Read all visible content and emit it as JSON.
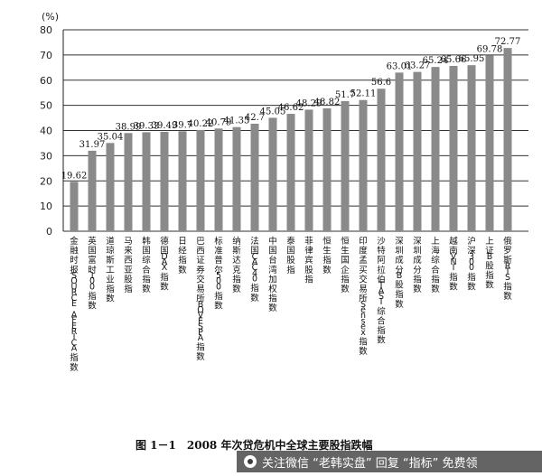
{
  "chart_data": {
    "type": "bar",
    "ylabel": "(%)",
    "ylim": [
      0,
      80
    ],
    "yticks": [
      0,
      10,
      20,
      30,
      40,
      50,
      60,
      70,
      80
    ],
    "grid": true,
    "categories": [
      "金融时报SOURCE AFERICA指数",
      "英国富时100指数",
      "道琼斯工业指数",
      "马来西亚股指",
      "韩国综合指数",
      "德国DAX指数",
      "日经指数",
      "巴西证券交易所BOVESPA指数",
      "标准普尔500指数",
      "纳斯达克指数",
      "法国CAC40指数",
      "中国台湾加权指数",
      "泰国股指",
      "菲律宾股指",
      "恒生指数",
      "恒生国企指数",
      "印度孟买交易所Sensex指数",
      "沙特阿拉伯TASI综合指数",
      "深圳成分B股指数",
      "深圳成分指数",
      "上海综合指数",
      "越南VNI指数",
      "沪深300指数",
      "上证B股指数",
      "俄罗斯RTS指数"
    ],
    "values": [
      19.62,
      31.97,
      35.04,
      38.99,
      39.33,
      39.49,
      39.7,
      40.22,
      40.79,
      41.35,
      42.7,
      45.05,
      46.62,
      48.29,
      48.82,
      51.7,
      52.11,
      56.6,
      63.01,
      63.27,
      65.24,
      65.66,
      65.95,
      69.78,
      72.77
    ],
    "data_labels": [
      "19.62",
      "31.97",
      "35.04",
      "38.99",
      "39.33",
      "39.49",
      "39.7",
      "40.22",
      "40.79",
      "41.35",
      "42.7",
      "45.05",
      "46.62",
      "48.29",
      "48.82",
      "51.7",
      "52.11",
      "56.6",
      "63.01",
      "63.27",
      "65.24",
      "65.66",
      "65.95",
      "69.78",
      "72.77"
    ],
    "bar_color": "#8a8a8a",
    "caption": "图 1－1　2008 年次贷危机中全球主要股指跌幅"
  },
  "watermark": {
    "text": "关注微信 “老韩实盘” 回复 “指标” 免费领"
  },
  "colors": {
    "bar": "#8a8a8a",
    "grid": "#333333",
    "axis": "#222222"
  }
}
